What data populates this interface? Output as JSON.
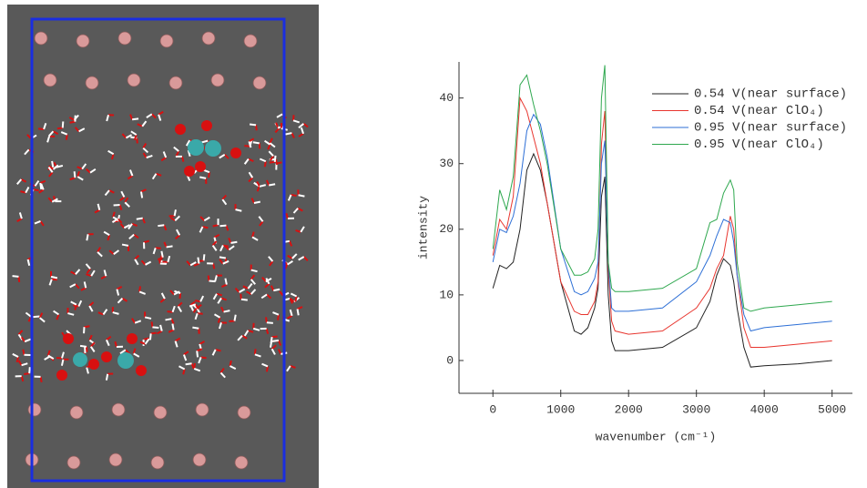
{
  "chart_data": {
    "type": "line",
    "x_label": "wavenumber (cm⁻¹)",
    "y_label": "intensity",
    "x": [
      0,
      100,
      200,
      300,
      400,
      500,
      600,
      700,
      800,
      1000,
      1200,
      1300,
      1400,
      1500,
      1550,
      1600,
      1650,
      1700,
      1750,
      1800,
      2000,
      2500,
      3000,
      3200,
      3300,
      3400,
      3500,
      3550,
      3600,
      3700,
      3800,
      4000,
      4500,
      5000
    ],
    "series": [
      {
        "name": "0.54 V(near surface)",
        "color": "#222222",
        "values": [
          11,
          14.5,
          14,
          15,
          20,
          29,
          31.5,
          29,
          24,
          12,
          4.5,
          4,
          5,
          8,
          11,
          25,
          28,
          10,
          3,
          1.5,
          1.5,
          2,
          5,
          9,
          13,
          15.5,
          14.5,
          12,
          8,
          2,
          -1,
          -0.8,
          -0.5,
          0
        ]
      },
      {
        "name": "0.54 V(near ClO₄)",
        "color": "#e8362f",
        "values": [
          16,
          21.5,
          20,
          25,
          40,
          38,
          34,
          30,
          24,
          12,
          7.5,
          7,
          7,
          9,
          12,
          33,
          38,
          14,
          6,
          4.5,
          4,
          4.5,
          8,
          11,
          14,
          16,
          22,
          20,
          13,
          5,
          2,
          2,
          2.5,
          3
        ]
      },
      {
        "name": "0.95 V(near surface)",
        "color": "#2d6fd6",
        "values": [
          15,
          20,
          19.5,
          22,
          27,
          35,
          37.5,
          36,
          31,
          17,
          10.5,
          10,
          10.5,
          12.5,
          15,
          30,
          33.5,
          15,
          8,
          7.5,
          7.5,
          8,
          12,
          16,
          19,
          21.5,
          21,
          18,
          13,
          7,
          4.5,
          5,
          5.5,
          6
        ]
      },
      {
        "name": "0.95 V(near ClO₄)",
        "color": "#2fa84f",
        "values": [
          17,
          26,
          23,
          28,
          42,
          43.5,
          39,
          35,
          30,
          17,
          13,
          13,
          13.5,
          15.5,
          20,
          40,
          45,
          15,
          11,
          10.5,
          10.5,
          11,
          14,
          21,
          21.5,
          25.5,
          27.5,
          26,
          15,
          8,
          7.5,
          8,
          8.5,
          9
        ]
      }
    ],
    "xlim": [
      -500,
      5300
    ],
    "ylim": [
      -5,
      45.5
    ],
    "xticks": [
      0,
      1000,
      2000,
      3000,
      4000,
      5000
    ],
    "yticks": [
      0,
      10,
      20,
      30,
      40
    ],
    "legend": "upper right"
  }
}
